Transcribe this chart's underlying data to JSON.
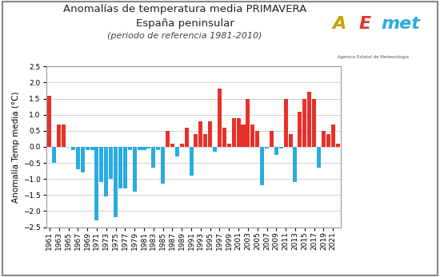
{
  "years": [
    1961,
    1962,
    1963,
    1964,
    1965,
    1966,
    1967,
    1968,
    1969,
    1970,
    1971,
    1972,
    1973,
    1974,
    1975,
    1976,
    1977,
    1978,
    1979,
    1980,
    1981,
    1982,
    1983,
    1984,
    1985,
    1986,
    1987,
    1988,
    1989,
    1990,
    1991,
    1992,
    1993,
    1994,
    1995,
    1996,
    1997,
    1998,
    1999,
    2000,
    2001,
    2002,
    2003,
    2004,
    2005,
    2006,
    2007,
    2008,
    2009,
    2010,
    2011,
    2012,
    2013,
    2014,
    2015,
    2016,
    2017,
    2018,
    2019,
    2020,
    2021,
    2022
  ],
  "values": [
    1.6,
    -0.5,
    0.7,
    0.7,
    0.0,
    -0.1,
    -0.7,
    -0.8,
    -0.1,
    -0.1,
    -2.3,
    -1.1,
    -1.55,
    -1.0,
    -2.2,
    -1.3,
    -1.3,
    -0.1,
    -1.4,
    -0.1,
    -0.1,
    -0.05,
    -0.65,
    -0.1,
    -1.15,
    0.5,
    0.1,
    -0.3,
    0.1,
    0.6,
    -0.9,
    0.4,
    0.8,
    0.4,
    0.8,
    -0.15,
    1.8,
    0.6,
    0.1,
    0.9,
    0.9,
    0.7,
    1.5,
    0.7,
    0.5,
    -1.2,
    -0.05,
    0.5,
    -0.25,
    -0.05,
    1.5,
    0.4,
    -1.1,
    1.1,
    1.5,
    1.7,
    1.5,
    -0.65,
    0.5,
    0.4,
    0.7,
    0.1
  ],
  "pos_color": "#e8302a",
  "neg_color": "#29abe2",
  "title_line1": "Anomalías de temperatura media PRIMAVERA",
  "title_line2": "España peninsular",
  "title_line3": "(periodo de referencia 1981-2010)",
  "ylabel": "Anomalía Temp media (°C)",
  "ylim": [
    -2.5,
    2.5
  ],
  "yticks": [
    -2.5,
    -2.0,
    -1.5,
    -1.0,
    -0.5,
    0.0,
    0.5,
    1.0,
    1.5,
    2.0,
    2.5
  ],
  "bg_color": "#ffffff",
  "plot_bg_color": "#ffffff",
  "grid_color": "#cccccc",
  "border_color": "#999999",
  "tick_label_fontsize": 6.5,
  "ylabel_fontsize": 7.5,
  "title1_fontsize": 9.5,
  "title2_fontsize": 9.5,
  "title3_fontsize": 8.0
}
